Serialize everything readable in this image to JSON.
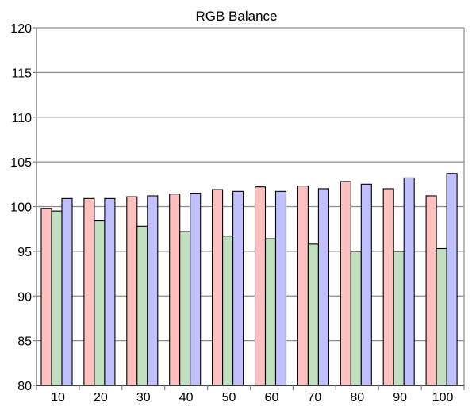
{
  "chart_data": {
    "type": "bar",
    "title": "RGB Balance",
    "xlabel": "",
    "ylabel": "",
    "ylim": [
      80,
      120
    ],
    "yticks": [
      80,
      85,
      90,
      95,
      100,
      105,
      110,
      115,
      120
    ],
    "grid": true,
    "legend": "none",
    "categories": [
      "10",
      "20",
      "30",
      "40",
      "50",
      "60",
      "70",
      "80",
      "90",
      "100"
    ],
    "series": [
      {
        "color": "#ffc0c0",
        "values": [
          99.8,
          100.9,
          101.1,
          101.4,
          101.9,
          102.2,
          102.3,
          102.8,
          102.0,
          101.2
        ]
      },
      {
        "color": "#c0e0c0",
        "values": [
          99.5,
          98.4,
          97.8,
          97.2,
          96.7,
          96.4,
          95.8,
          95.0,
          95.0,
          95.3
        ]
      },
      {
        "color": "#c0c0ff",
        "values": [
          100.9,
          100.9,
          101.2,
          101.5,
          101.7,
          101.7,
          102.0,
          102.5,
          103.2,
          103.7
        ]
      }
    ]
  }
}
